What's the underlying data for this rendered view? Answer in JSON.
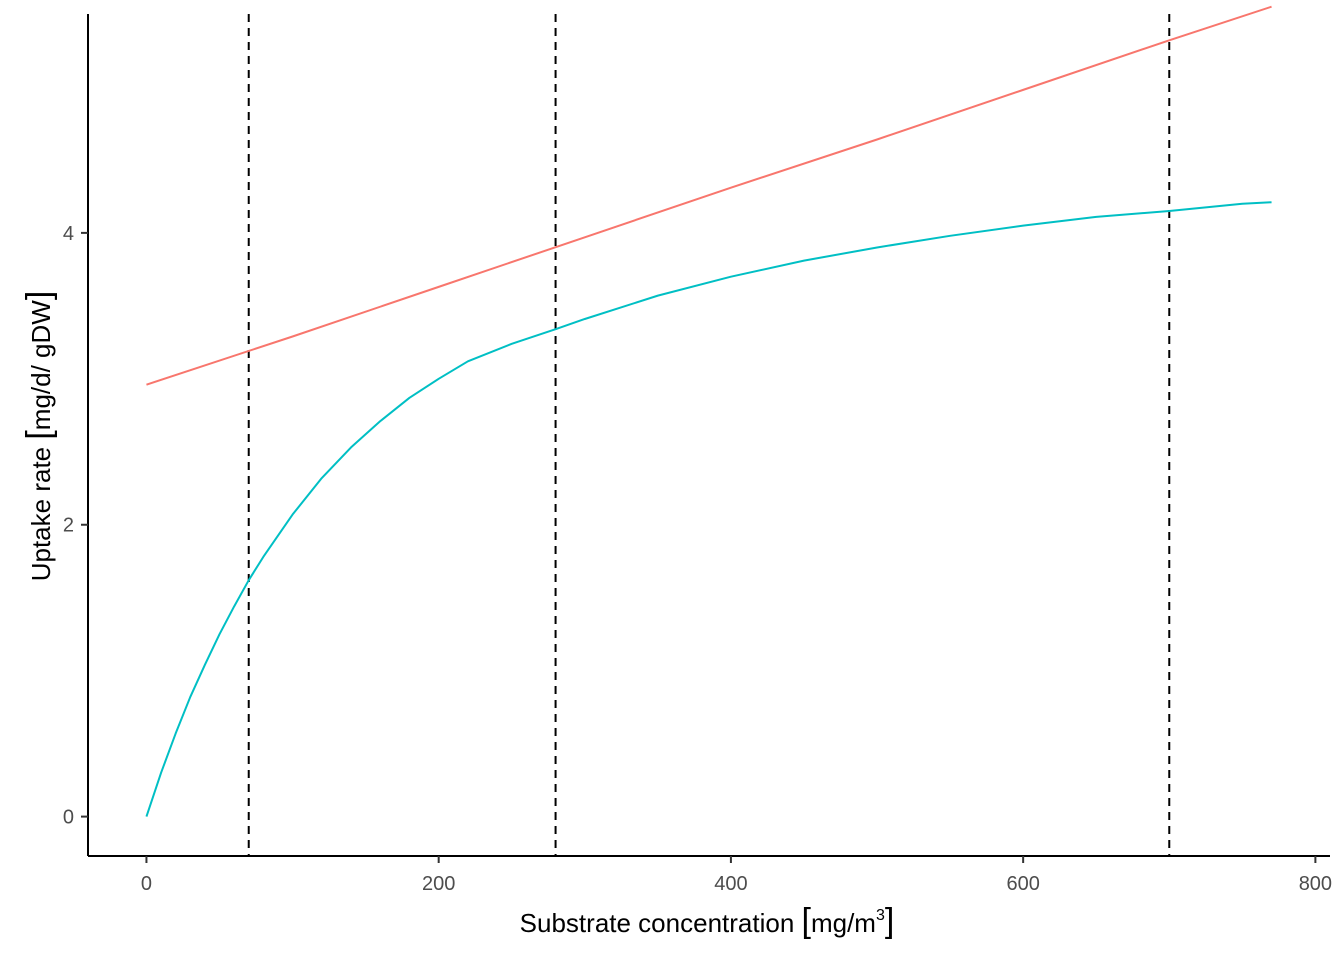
{
  "chart_data": {
    "type": "line",
    "title": "",
    "xlabel": {
      "prefix": "Substrate concentration ",
      "unit": "mg/m",
      "superscript": "3"
    },
    "ylabel": {
      "prefix": "Uptake rate ",
      "unit": "mg/d/ gDW"
    },
    "xlim": [
      -40,
      810
    ],
    "ylim": [
      -0.27,
      5.5
    ],
    "x_ticks": [
      0,
      200,
      400,
      600,
      800
    ],
    "y_ticks": [
      0,
      2,
      4
    ],
    "grid": false,
    "legend": "none",
    "vlines": [
      {
        "x": 70,
        "style": "dashed",
        "color": "#000000"
      },
      {
        "x": 280,
        "style": "dashed",
        "color": "#000000"
      },
      {
        "x": 700,
        "style": "dashed",
        "color": "#000000"
      }
    ],
    "series": [
      {
        "color": "#F8766D",
        "x": [
          0,
          100,
          200,
          300,
          400,
          500,
          600,
          700,
          770
        ],
        "values": [
          2.96,
          3.29,
          3.63,
          3.97,
          4.31,
          4.64,
          4.98,
          5.32,
          5.55
        ]
      },
      {
        "color": "#00BFC4",
        "x": [
          0,
          10,
          20,
          30,
          40,
          50,
          60,
          70,
          80,
          100,
          120,
          140,
          160,
          180,
          200,
          220,
          250,
          280,
          300,
          350,
          400,
          450,
          500,
          550,
          600,
          650,
          700,
          750,
          770
        ],
        "values": [
          0.0,
          0.3,
          0.57,
          0.82,
          1.04,
          1.25,
          1.44,
          1.62,
          1.78,
          2.07,
          2.32,
          2.53,
          2.71,
          2.87,
          3.0,
          3.12,
          3.24,
          3.34,
          3.41,
          3.57,
          3.7,
          3.81,
          3.9,
          3.98,
          4.05,
          4.11,
          4.15,
          4.2,
          4.21
        ]
      }
    ]
  }
}
